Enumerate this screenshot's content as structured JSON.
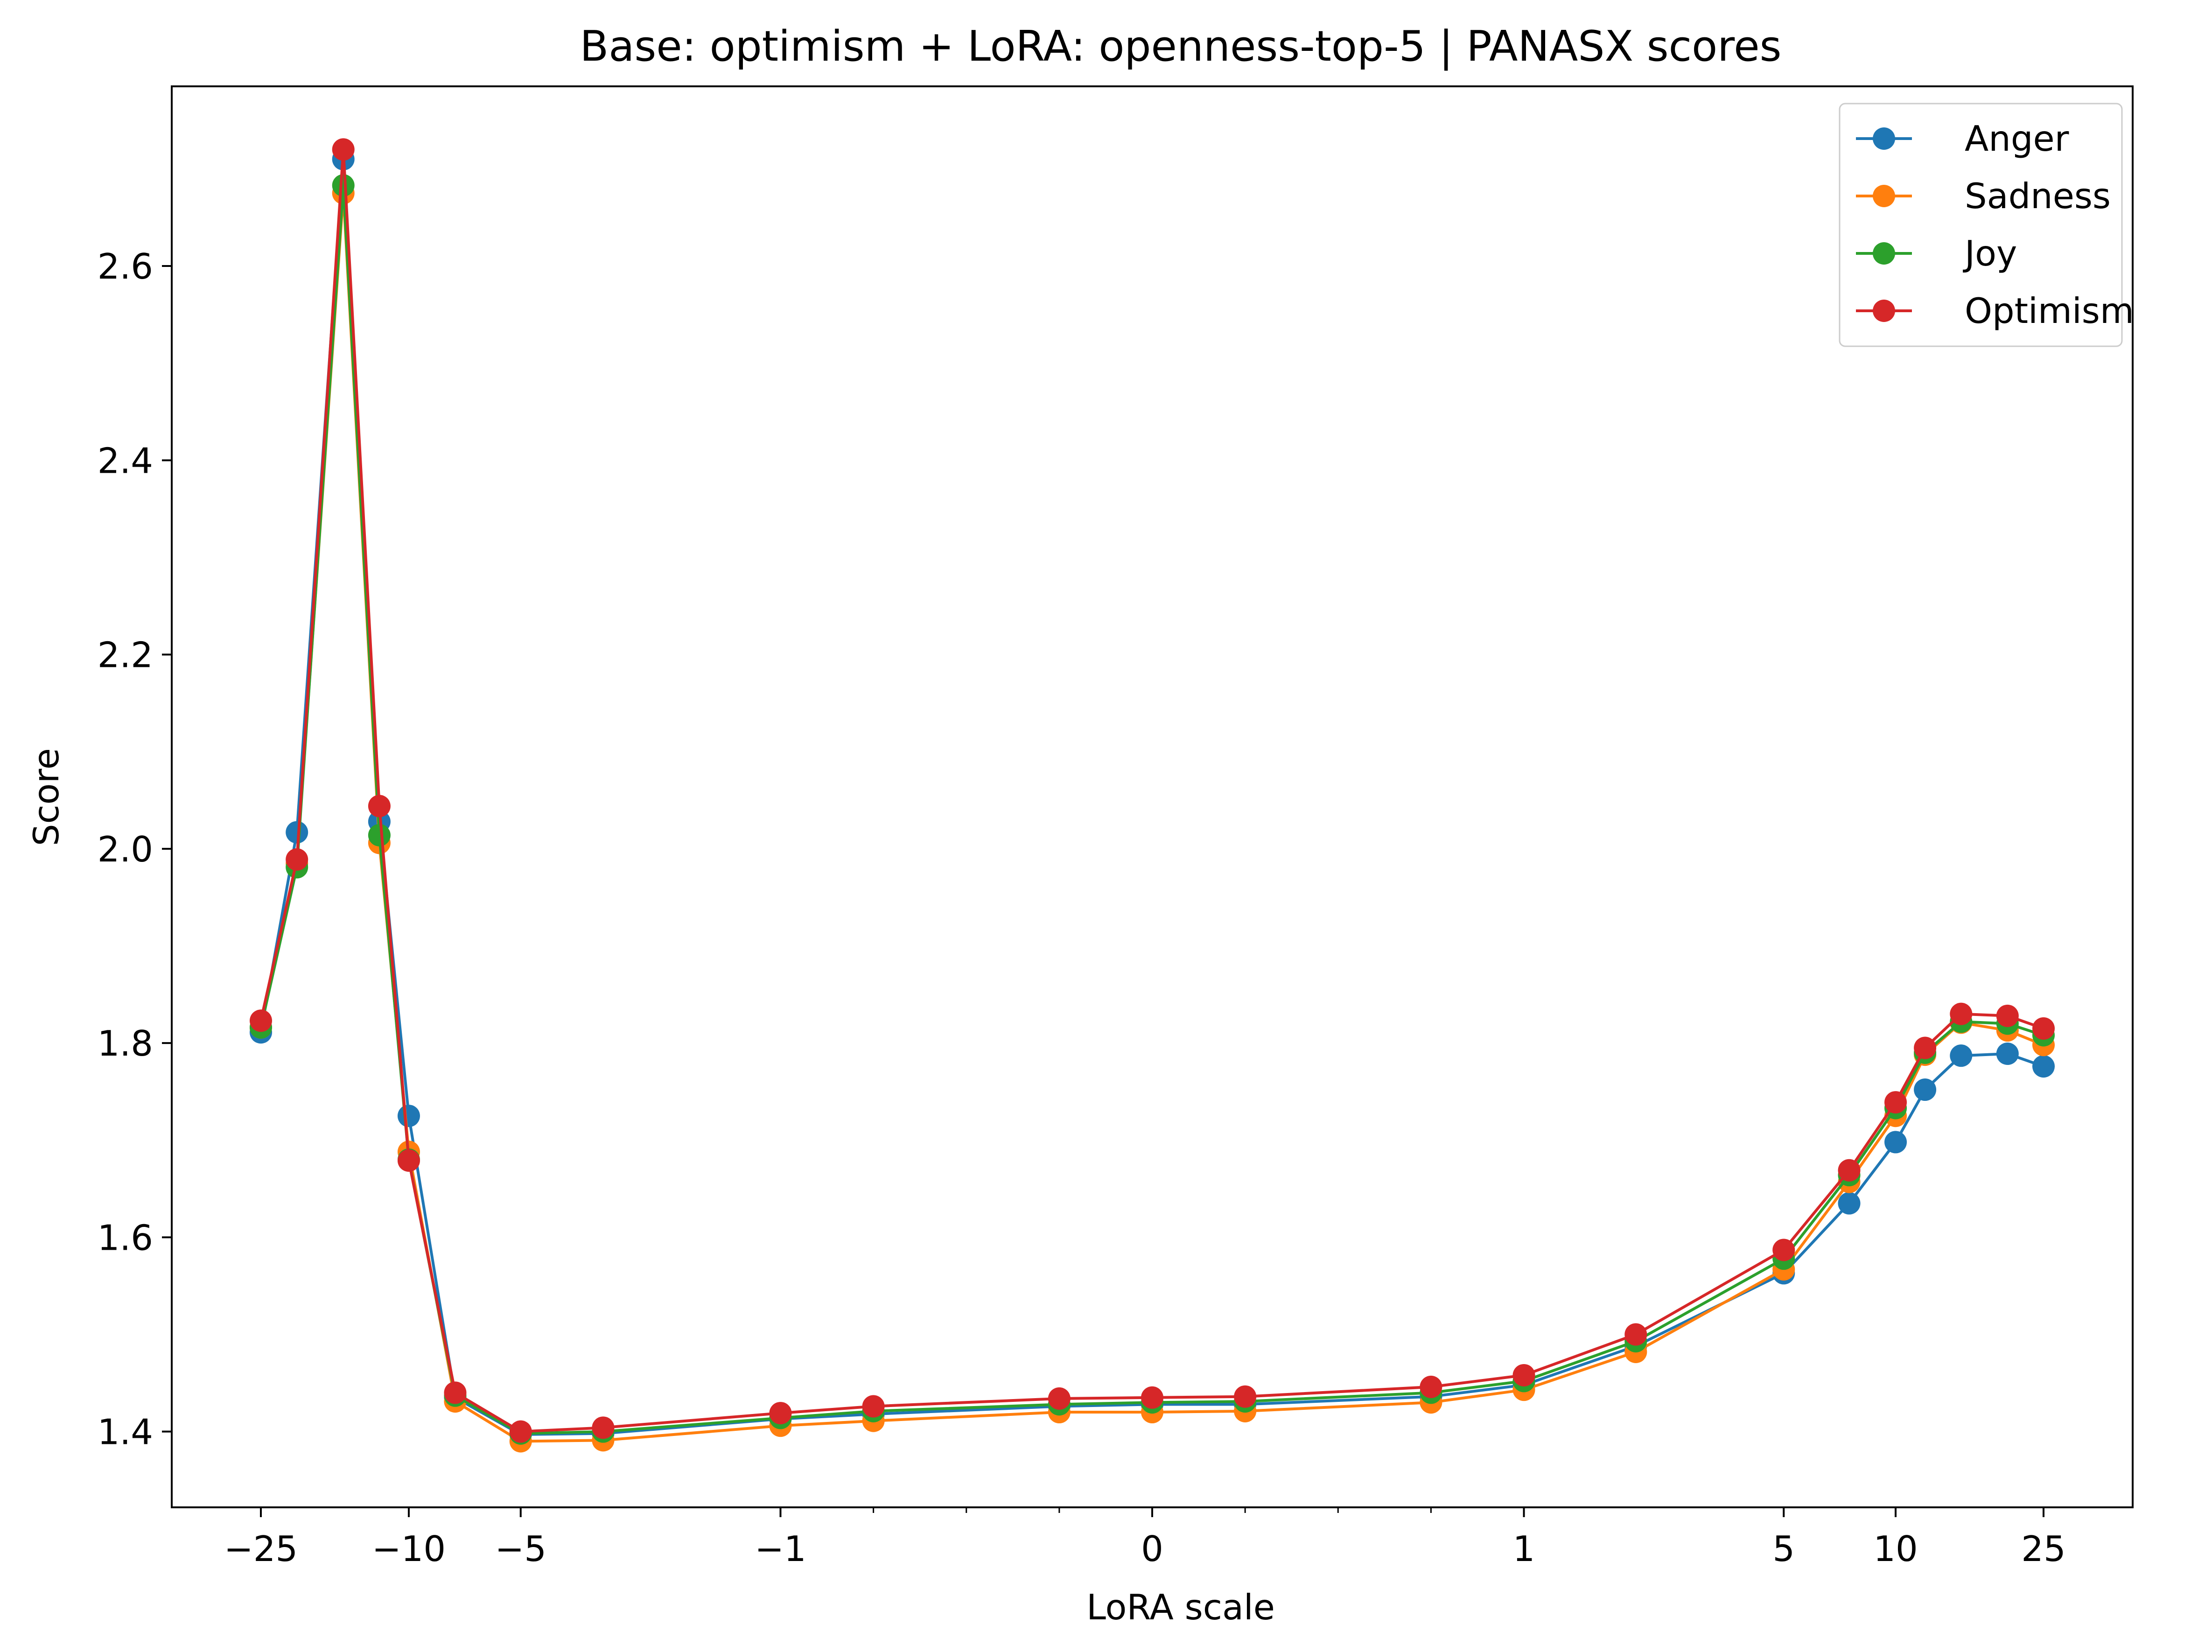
{
  "chart_data": {
    "type": "line",
    "title": "Base: optimism + LoRA: openness-top-5 | PANASX scores",
    "xlabel": "LoRA scale",
    "ylabel": "Score",
    "x_scale": "symlog",
    "x_ticks": [
      {
        "value": -25,
        "label": "−25"
      },
      {
        "value": -10,
        "label": "−10"
      },
      {
        "value": -5,
        "label": "−5"
      },
      {
        "value": -1,
        "label": "−1"
      },
      {
        "value": 0,
        "label": "0"
      },
      {
        "value": 1,
        "label": "1"
      },
      {
        "value": 5,
        "label": "5"
      },
      {
        "value": 10,
        "label": "10"
      },
      {
        "value": 25,
        "label": "25"
      }
    ],
    "y_ticks": [
      {
        "value": 1.4,
        "label": "1.4"
      },
      {
        "value": 1.6,
        "label": "1.6"
      },
      {
        "value": 1.8,
        "label": "1.8"
      },
      {
        "value": 2.0,
        "label": "2.0"
      },
      {
        "value": 2.2,
        "label": "2.2"
      },
      {
        "value": 2.4,
        "label": "2.4"
      },
      {
        "value": 2.6,
        "label": "2.6"
      }
    ],
    "ylim": [
      1.322,
      2.785
    ],
    "grid": false,
    "legend_position": "top-right",
    "x": [
      -25,
      -20,
      -15,
      -12,
      -10,
      -7.5,
      -5,
      -3,
      -1,
      -0.75,
      -0.25,
      0,
      0.25,
      0.75,
      1,
      2,
      5,
      7.5,
      10,
      12,
      15,
      20,
      25
    ],
    "series": [
      {
        "name": "Anger",
        "color": "#1f77b4",
        "values": [
          1.811,
          2.017,
          2.71,
          2.028,
          1.725,
          1.435,
          1.397,
          1.398,
          1.413,
          1.418,
          1.426,
          1.428,
          1.428,
          1.436,
          1.448,
          1.488,
          1.563,
          1.635,
          1.698,
          1.752,
          1.787,
          1.789,
          1.776
        ]
      },
      {
        "name": "Sadness",
        "color": "#ff7f0e",
        "values": [
          1.816,
          1.985,
          2.675,
          2.006,
          1.688,
          1.431,
          1.39,
          1.391,
          1.406,
          1.411,
          1.42,
          1.42,
          1.421,
          1.43,
          1.443,
          1.482,
          1.567,
          1.657,
          1.725,
          1.788,
          1.821,
          1.813,
          1.798
        ]
      },
      {
        "name": "Joy",
        "color": "#2ca02c",
        "values": [
          1.816,
          1.981,
          2.683,
          2.014,
          1.68,
          1.437,
          1.398,
          1.4,
          1.414,
          1.421,
          1.428,
          1.43,
          1.431,
          1.44,
          1.452,
          1.493,
          1.578,
          1.664,
          1.733,
          1.79,
          1.822,
          1.82,
          1.808
        ]
      },
      {
        "name": "Optimism",
        "color": "#d62728",
        "values": [
          1.823,
          1.989,
          2.72,
          2.044,
          1.679,
          1.44,
          1.4,
          1.404,
          1.419,
          1.426,
          1.434,
          1.435,
          1.436,
          1.446,
          1.458,
          1.5,
          1.587,
          1.669,
          1.739,
          1.795,
          1.83,
          1.828,
          1.815
        ]
      }
    ]
  }
}
